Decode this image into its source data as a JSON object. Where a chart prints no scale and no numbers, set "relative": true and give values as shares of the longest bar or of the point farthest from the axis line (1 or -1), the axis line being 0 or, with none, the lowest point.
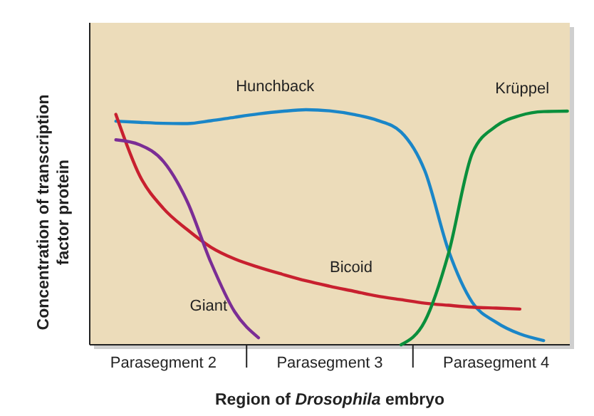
{
  "chart_data": {
    "type": "line",
    "relative": true,
    "xlabel": "Region of Drosophila embryo",
    "ylabel": "Concentration of transcription factor protein",
    "categories": [
      null,
      null,
      null,
      "Parasegment 2",
      null,
      null,
      null,
      null,
      null,
      null,
      "Parasegment 3",
      null,
      null,
      null,
      null,
      null,
      null,
      "Parasegment 4",
      null,
      null,
      null
    ],
    "line_style": "solid",
    "series": [
      {
        "name": "Hunchback",
        "color": "#1a86c8",
        "values": [
          null,
          0.951,
          0.946,
          0.942,
          0.941,
          0.953,
          0.968,
          0.982,
          0.993,
          1,
          0.995,
          0.98,
          0.955,
          0.905,
          0.74,
          0.4,
          0.18,
          0.096,
          0.046,
          0.018,
          null
        ]
      },
      {
        "name": "Bicoid",
        "color": "#c8202f",
        "values": [
          null,
          0.98,
          0.72,
          0.58,
          0.49,
          0.415,
          0.365,
          0.33,
          0.3,
          0.272,
          0.249,
          0.228,
          0.207,
          0.192,
          0.177,
          0.168,
          0.16,
          0.156,
          0.152,
          null,
          null
        ]
      },
      {
        "name": "Giant",
        "color": "#7b2d95",
        "values": [
          null,
          0.872,
          0.851,
          0.78,
          0.61,
          0.35,
          0.14,
          0.03,
          null,
          null,
          null,
          null,
          null,
          null,
          null,
          null,
          null,
          null,
          null,
          null,
          null
        ]
      },
      {
        "name": "Krüppel",
        "color": "#0a8f3c",
        "values": [
          null,
          null,
          null,
          null,
          null,
          null,
          null,
          null,
          null,
          null,
          null,
          null,
          null,
          0,
          0.1,
          0.39,
          0.815,
          0.93,
          0.975,
          0.992,
          0.994
        ]
      }
    ]
  }
}
